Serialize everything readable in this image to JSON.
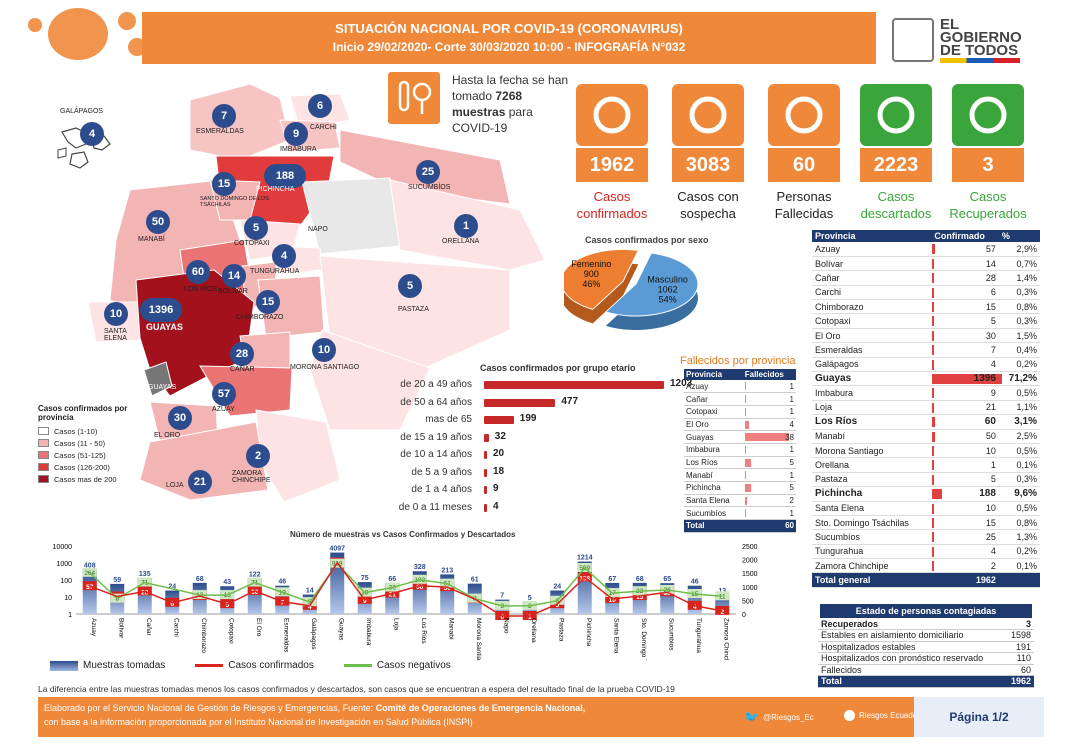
{
  "header": {
    "line1": "SITUACIÓN NACIONAL POR  COVID-19 (CORONAVIRUS)",
    "line2": "Inicio 29/02/2020- Corte 30/03/2020 10:00  - INFOGRAFÍA N°032",
    "logo": {
      "l1": "EL",
      "l2": "GOBIERNO",
      "l3": "DE TODOS"
    }
  },
  "samples_note": {
    "pre": "Hasta la fecha se han tomado",
    "value": "7268",
    "unit": "muestras",
    "post": "para COVID-19"
  },
  "kpis": [
    {
      "value": "1962",
      "label": "Casos confirmados",
      "color": "#d9231d",
      "icon": "check-icon"
    },
    {
      "value": "3083",
      "label": "Casos con sospecha",
      "color": "#222222",
      "icon": "doctor-search-icon"
    },
    {
      "value": "60",
      "label": "Personas Fallecidas",
      "color": "#222222",
      "icon": "person-x-icon"
    },
    {
      "value": "2223",
      "label": "Casos descartados",
      "color": "#3aa53a",
      "icon": "minus-icon"
    },
    {
      "value": "3",
      "label": "Casos Recuperados",
      "color": "#3aa53a",
      "icon": "recovered-icon"
    }
  ],
  "map": {
    "provinces": [
      {
        "name": "GALÁPAGOS",
        "value": 4
      },
      {
        "name": "ESMERALDAS",
        "value": 7
      },
      {
        "name": "CARCHI",
        "value": 6
      },
      {
        "name": "IMBABURA",
        "value": 9
      },
      {
        "name": "PICHINCHA",
        "value": 188
      },
      {
        "name": "SUCUMBÍOS",
        "value": 25
      },
      {
        "name": "SANTO DOMINGO DE LOS TSÁCHILAS",
        "value": 15
      },
      {
        "name": "NAPO",
        "value": null
      },
      {
        "name": "ORELLANA",
        "value": 1
      },
      {
        "name": "MANABÍ",
        "value": 50
      },
      {
        "name": "COTOPAXI",
        "value": 5
      },
      {
        "name": "TUNGURAHUA",
        "value": 4
      },
      {
        "name": "LOS RÍOS",
        "value": 60
      },
      {
        "name": "BOLÍVAR",
        "value": 14
      },
      {
        "name": "PASTAZA",
        "value": 5
      },
      {
        "name": "SANTA ELENA",
        "value": 10
      },
      {
        "name": "GUAYAS",
        "value": 1396
      },
      {
        "name": "CHIMBORAZO",
        "value": 15
      },
      {
        "name": "CAÑAR",
        "value": 28
      },
      {
        "name": "MORONA SANTIAGO",
        "value": 10
      },
      {
        "name": "AZUAY",
        "value": 57
      },
      {
        "name": "EL ORO",
        "value": 30
      },
      {
        "name": "ZAMORA CHINCHIPE",
        "value": 2
      },
      {
        "name": "LOJA",
        "value": 21
      }
    ],
    "guayas_lbl": "GUAYAS",
    "legend_title": "Casos confirmados por provincia",
    "legend": [
      {
        "label": "Casos (1-10)",
        "color": "#ffffff"
      },
      {
        "label": "Casos (11 - 50)",
        "color": "#f3b4b4"
      },
      {
        "label": "Casos (51-125)",
        "color": "#ea7474"
      },
      {
        "label": "Casos (126-200)",
        "color": "#e23b3b"
      },
      {
        "label": "Casos mas de 200",
        "color": "#a3121c"
      }
    ]
  },
  "chart_data": [
    {
      "type": "pie",
      "title": "Casos confirmados por sexo",
      "slices": [
        {
          "label": "Masculino",
          "value": 1062,
          "pct": "54%",
          "color": "#5b9bd5"
        },
        {
          "label": "Femenino",
          "value": 900,
          "pct": "46%",
          "color": "#ed7d31"
        }
      ]
    },
    {
      "type": "bar",
      "title": "Casos confirmados por grupo etario",
      "categories": [
        "de 20 a 49 años",
        "de 50 a 64 años",
        "mas de 65",
        "de 15 a 19 años",
        "de 10 a 14 años",
        "de 5 a 9 años",
        "de 1 a 4 años",
        "de 0 a 11 meses"
      ],
      "values": [
        1203,
        477,
        199,
        32,
        20,
        18,
        9,
        4
      ]
    },
    {
      "type": "bar",
      "title": "Número de muestras vs Casos Confirmados y Descartados",
      "log_scale": true,
      "y_ticks_left": [
        "10000",
        "1000",
        "100",
        "10",
        "1"
      ],
      "y_ticks_right": [
        "2500",
        "2000",
        "1500",
        "1000",
        "500",
        "0"
      ],
      "categories": [
        "Azuay",
        "Bolívar",
        "Cañar",
        "Carchi",
        "Chimborazo",
        "Cotopaxi",
        "El Oro",
        "Esmeraldas",
        "Galápagos",
        "Guayas",
        "Imbabura",
        "Loja",
        "Los Ríos",
        "Manabí",
        "Morona Santiago",
        "Napo",
        "Orellana",
        "Pastaza",
        "Pichincha",
        "Santa Elena",
        "Sto. Domingo Tsáchilas",
        "Sucumbíos",
        "Tungurahua",
        "Zamora Chinchipe"
      ],
      "series": [
        {
          "name": "Muestras tomadas",
          "values": [
            408,
            59,
            135,
            24,
            68,
            43,
            122,
            46,
            14,
            4097,
            75,
            66,
            328,
            213,
            61,
            7,
            5,
            24,
            1214,
            67,
            68,
            65,
            46,
            13
          ]
        },
        {
          "name": "Casos confirmados",
          "values": [
            57,
            14,
            28,
            6,
            15,
            5,
            30,
            7,
            4,
            1396,
            9,
            21,
            60,
            50,
            10,
            0,
            1,
            5,
            188,
            10,
            15,
            25,
            4,
            2
          ]
        },
        {
          "name": "Casos negativos",
          "values": [
            264,
            8,
            71,
            null,
            13,
            13,
            71,
            19,
            5,
            918,
            18,
            36,
            103,
            61,
            8,
            3,
            3,
            6,
            509,
            17,
            22,
            26,
            15,
            11
          ]
        }
      ]
    }
  ],
  "fallecidos": {
    "title": "Fallecidos por provincia",
    "headers": [
      "Provincia",
      "Fallecidos"
    ],
    "rows": [
      {
        "p": "Azuay",
        "v": "1",
        "n": 1
      },
      {
        "p": "Cañar",
        "v": "1",
        "n": 1
      },
      {
        "p": "Cotopaxi",
        "v": "1",
        "n": 1
      },
      {
        "p": "El Oro",
        "v": "4",
        "n": 4
      },
      {
        "p": "Guayas",
        "v": "38",
        "n": 38
      },
      {
        "p": "Imbabura",
        "v": "1",
        "n": 1
      },
      {
        "p": "Los Ríos",
        "v": "5",
        "n": 5
      },
      {
        "p": "Manabí",
        "v": "1",
        "n": 1
      },
      {
        "p": "Pichincha",
        "v": "5",
        "n": 5
      },
      {
        "p": "Santa Elena",
        "v": "2",
        "n": 2
      },
      {
        "p": "Sucumbíos",
        "v": "1",
        "n": 1
      }
    ],
    "total_label": "Total",
    "total": "60"
  },
  "provincias": {
    "headers": [
      "Provincia",
      "Confirmado",
      "%"
    ],
    "rows": [
      {
        "p": "Azuay",
        "c": "57",
        "pct": "2,9%",
        "n": 57,
        "b": false
      },
      {
        "p": "Bolívar",
        "c": "14",
        "pct": "0,7%",
        "n": 14,
        "b": false
      },
      {
        "p": "Cañar",
        "c": "28",
        "pct": "1,4%",
        "n": 28,
        "b": false
      },
      {
        "p": "Carchi",
        "c": "6",
        "pct": "0,3%",
        "n": 6,
        "b": false
      },
      {
        "p": "Chimborazo",
        "c": "15",
        "pct": "0,8%",
        "n": 15,
        "b": false
      },
      {
        "p": "Cotopaxi",
        "c": "5",
        "pct": "0,3%",
        "n": 5,
        "b": false
      },
      {
        "p": "El Oro",
        "c": "30",
        "pct": "1,5%",
        "n": 30,
        "b": false
      },
      {
        "p": "Esmeraldas",
        "c": "7",
        "pct": "0,4%",
        "n": 7,
        "b": false
      },
      {
        "p": "Galápagos",
        "c": "4",
        "pct": "0,2%",
        "n": 4,
        "b": false
      },
      {
        "p": "Guayas",
        "c": "1396",
        "pct": "71,2%",
        "n": 1396,
        "b": true
      },
      {
        "p": "Imbabura",
        "c": "9",
        "pct": "0,5%",
        "n": 9,
        "b": false
      },
      {
        "p": "Loja",
        "c": "21",
        "pct": "1,1%",
        "n": 21,
        "b": false
      },
      {
        "p": "Los Ríos",
        "c": "60",
        "pct": "3,1%",
        "n": 60,
        "b": true
      },
      {
        "p": "Manabí",
        "c": "50",
        "pct": "2,5%",
        "n": 50,
        "b": false
      },
      {
        "p": "Morona Santiago",
        "c": "10",
        "pct": "0,5%",
        "n": 10,
        "b": false
      },
      {
        "p": "Orellana",
        "c": "1",
        "pct": "0,1%",
        "n": 1,
        "b": false
      },
      {
        "p": "Pastaza",
        "c": "5",
        "pct": "0,3%",
        "n": 5,
        "b": false
      },
      {
        "p": "Pichincha",
        "c": "188",
        "pct": "9,6%",
        "n": 188,
        "b": true
      },
      {
        "p": "Santa Elena",
        "c": "10",
        "pct": "0,5%",
        "n": 10,
        "b": false
      },
      {
        "p": "Sto. Domingo Tsáchilas",
        "c": "15",
        "pct": "0,8%",
        "n": 15,
        "b": false
      },
      {
        "p": "Sucumbíos",
        "c": "25",
        "pct": "1,3%",
        "n": 25,
        "b": false
      },
      {
        "p": "Tungurahua",
        "c": "4",
        "pct": "0,2%",
        "n": 4,
        "b": false
      },
      {
        "p": "Zamora Chinchipe",
        "c": "2",
        "pct": "0,1%",
        "n": 2,
        "b": false
      }
    ],
    "total_label": "Total general",
    "total": "1962"
  },
  "estado": {
    "title": "Estado de personas contagiadas",
    "rows": [
      {
        "l": "Recuperados",
        "v": "3",
        "b": true
      },
      {
        "l": "Estables en aislamiento domiciliario",
        "v": "1598",
        "b": false
      },
      {
        "l": "Hospitalizados estables",
        "v": "191",
        "b": false
      },
      {
        "l": "Hospitalizados con pronóstico reservado",
        "v": "110",
        "b": false
      },
      {
        "l": "Fallecidos",
        "v": "60",
        "b": false
      }
    ],
    "total_label": "Total",
    "total": "1962"
  },
  "note": "La diferencia entre las muestras tomadas menos los casos confirmados y descartados, son casos que se encuentran a espera del resultado final de la prueba COVID-19",
  "footer": {
    "line1_a": "Elaborado por el Servicio Nacional de Gestión de Riesgos y Emergencias, Fuente: ",
    "line1_b": "Comité de Operaciones de Emergencia Nacional,",
    "line2": "con base a la información proporcionada por el Instituto Nacional de Investigación en Salud Pública (INSPI)",
    "twitter": "@Riesgos_Ec",
    "facebook": "Riesgos Ecuador",
    "page": "Página 1/2"
  }
}
